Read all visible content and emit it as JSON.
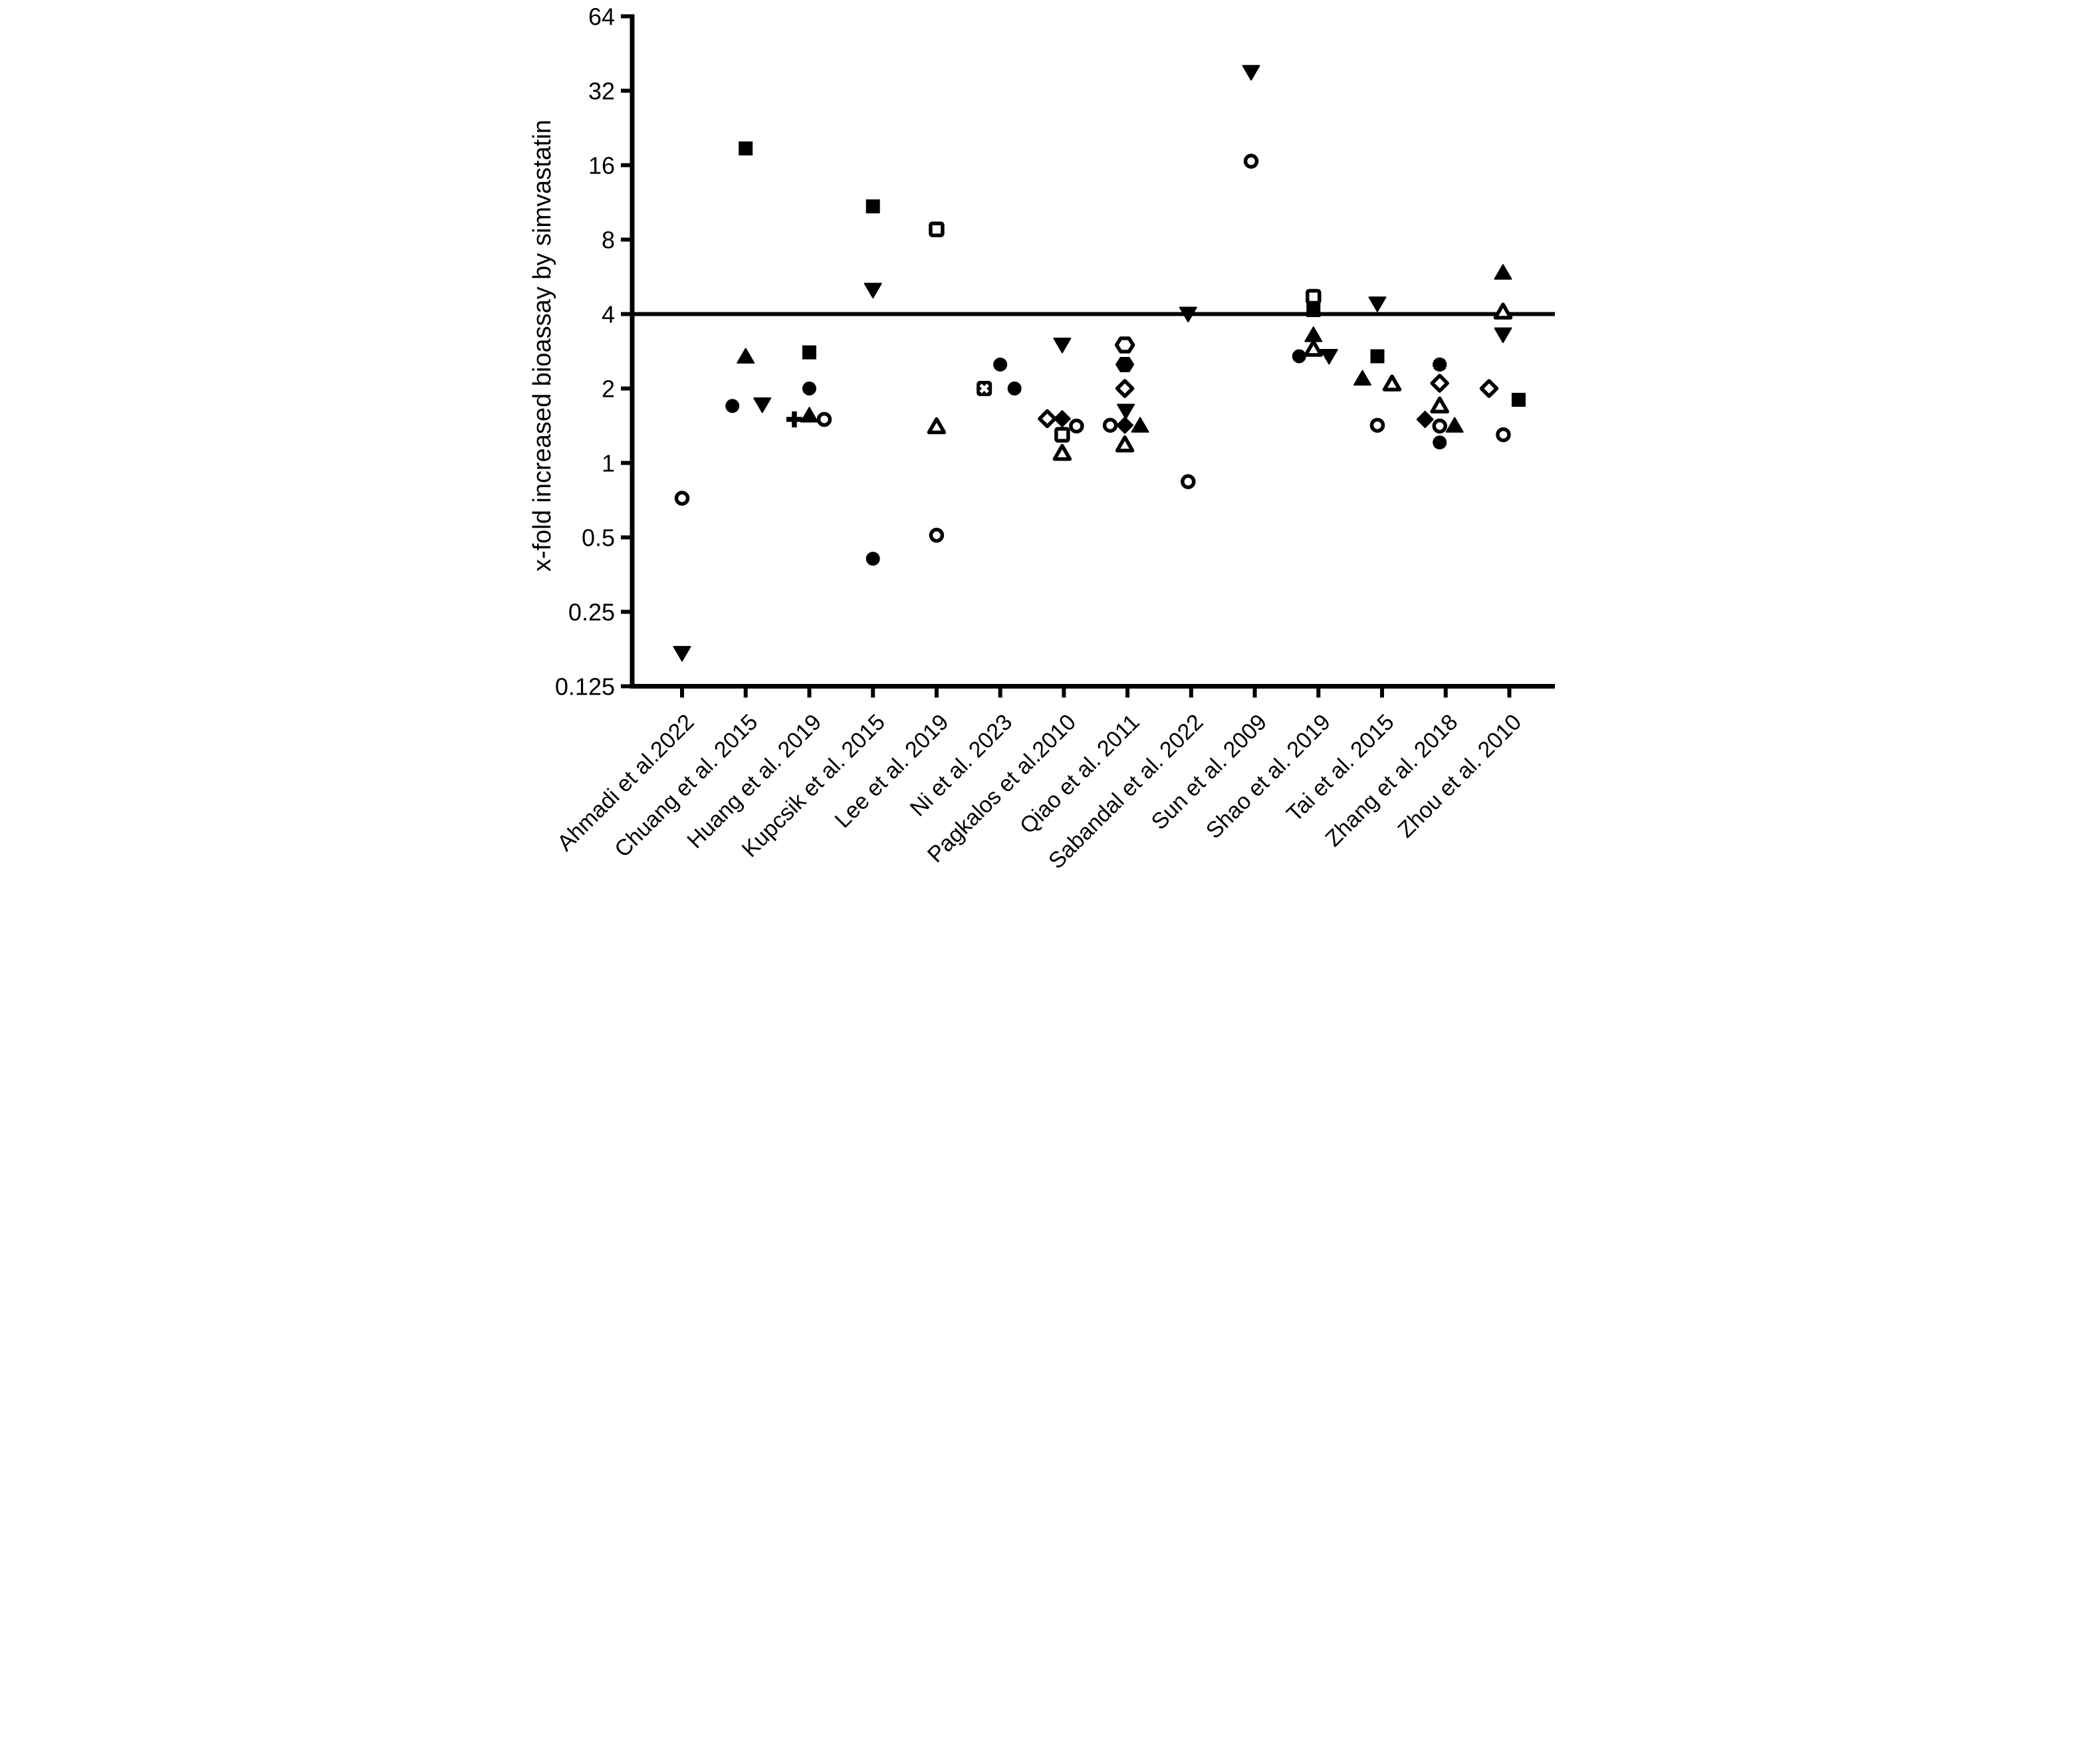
{
  "figure": {
    "background_color": "#ffffff",
    "foreground_color": "#000000"
  },
  "chart_data": {
    "type": "scatter",
    "title": "",
    "xlabel": "",
    "ylabel": "x-fold increased bioassay by simvastatin",
    "y_scale": "log2",
    "ylim": [
      0.125,
      64
    ],
    "y_ticks": [
      64,
      32,
      16,
      8,
      4,
      2,
      1,
      0.5,
      0.25,
      0.125
    ],
    "y_tick_labels": [
      "64",
      "32",
      "16",
      "8",
      "4",
      "2",
      "1",
      "0.5",
      "0.25",
      "0.125"
    ],
    "reference_line_y": 4,
    "grid": false,
    "legend": "none",
    "categories": [
      "Ahmadi et al.2022",
      "Chuang et al. 2015",
      "Huang et al. 2019",
      "Kupcsik et al. 2015",
      "Lee et al. 2019",
      "Ni et al. 2023",
      "Pagkalos et al.2010",
      "Qiao et al. 2011",
      "Sabandal et al. 2022",
      "Sun et al. 2009",
      "Shao et al. 2019",
      "Tai et al. 2015",
      "Zhang et al. 2018",
      "Zhou et al. 2010"
    ],
    "series": [
      {
        "study": "Ahmadi et al.2022",
        "points": [
          {
            "marker": "circle",
            "fill": "open",
            "value": 0.72,
            "dx": 0
          },
          {
            "marker": "triangle-down",
            "fill": "filled",
            "value": 0.17,
            "dx": 0
          }
        ]
      },
      {
        "study": "Chuang et al. 2015",
        "points": [
          {
            "marker": "square",
            "fill": "filled",
            "value": 18.7,
            "dx": 0
          },
          {
            "marker": "triangle-up",
            "fill": "filled",
            "value": 2.7,
            "dx": 0
          },
          {
            "marker": "circle",
            "fill": "filled",
            "value": 1.7,
            "dx": -40
          },
          {
            "marker": "triangle-down",
            "fill": "filled",
            "value": 1.72,
            "dx": 50
          }
        ]
      },
      {
        "study": "Huang et al. 2019",
        "points": [
          {
            "marker": "square",
            "fill": "filled",
            "value": 2.8,
            "dx": 0
          },
          {
            "marker": "circle",
            "fill": "filled",
            "value": 2.0,
            "dx": 0
          },
          {
            "marker": "plus",
            "fill": "filled",
            "value": 1.5,
            "dx": -45
          },
          {
            "marker": "triangle-up",
            "fill": "filled",
            "value": 1.56,
            "dx": 0
          },
          {
            "marker": "circle",
            "fill": "open",
            "value": 1.5,
            "dx": 45
          }
        ]
      },
      {
        "study": "Kupcsik et al. 2015",
        "points": [
          {
            "marker": "square",
            "fill": "filled",
            "value": 10.9,
            "dx": 0
          },
          {
            "marker": "triangle-down",
            "fill": "filled",
            "value": 5.0,
            "dx": 0
          },
          {
            "marker": "circle",
            "fill": "filled",
            "value": 0.41,
            "dx": 0
          }
        ]
      },
      {
        "study": "Lee et al. 2019",
        "points": [
          {
            "marker": "square",
            "fill": "open",
            "value": 8.8,
            "dx": 0
          },
          {
            "marker": "triangle-up",
            "fill": "open",
            "value": 1.41,
            "dx": 0
          },
          {
            "marker": "circle",
            "fill": "open",
            "value": 0.51,
            "dx": 0
          }
        ]
      },
      {
        "study": "Ni et al. 2023",
        "points": [
          {
            "marker": "circle",
            "fill": "filled",
            "value": 2.5,
            "dx": 0
          },
          {
            "marker": "square-x",
            "fill": "filled",
            "value": 2.0,
            "dx": -48
          },
          {
            "marker": "circle",
            "fill": "filled",
            "value": 2.0,
            "dx": 43
          }
        ]
      },
      {
        "study": "Pagkalos et al.2010",
        "points": [
          {
            "marker": "triangle-down",
            "fill": "filled",
            "value": 3.0,
            "dx": -5
          },
          {
            "marker": "diamond",
            "fill": "open",
            "value": 1.51,
            "dx": -50
          },
          {
            "marker": "diamond",
            "fill": "filled",
            "value": 1.51,
            "dx": -5
          },
          {
            "marker": "circle",
            "fill": "open",
            "value": 1.41,
            "dx": 38
          },
          {
            "marker": "square",
            "fill": "open",
            "value": 1.3,
            "dx": -5
          },
          {
            "marker": "triangle-up",
            "fill": "open",
            "value": 1.1,
            "dx": -5
          }
        ]
      },
      {
        "study": "Qiao et al. 2011",
        "points": [
          {
            "marker": "hexagon",
            "fill": "open",
            "value": 3.0,
            "dx": -8
          },
          {
            "marker": "hexagon",
            "fill": "filled",
            "value": 2.5,
            "dx": -8
          },
          {
            "marker": "diamond",
            "fill": "open",
            "value": 2.0,
            "dx": -8
          },
          {
            "marker": "triangle-down",
            "fill": "filled",
            "value": 1.62,
            "dx": -5
          },
          {
            "marker": "circle",
            "fill": "open",
            "value": 1.42,
            "dx": -52
          },
          {
            "marker": "diamond",
            "fill": "filled",
            "value": 1.42,
            "dx": -8
          },
          {
            "marker": "triangle-up",
            "fill": "filled",
            "value": 1.42,
            "dx": 38
          },
          {
            "marker": "triangle-up",
            "fill": "open",
            "value": 1.19,
            "dx": -8
          }
        ]
      },
      {
        "study": "Sabandal et al. 2022",
        "points": [
          {
            "marker": "triangle-down",
            "fill": "filled",
            "value": 4.0,
            "dx": -9
          },
          {
            "marker": "circle",
            "fill": "open",
            "value": 0.84,
            "dx": -9
          }
        ]
      },
      {
        "study": "Sun et al. 2009",
        "points": [
          {
            "marker": "triangle-down",
            "fill": "filled",
            "value": 38,
            "dx": -11
          },
          {
            "marker": "circle",
            "fill": "open",
            "value": 16.6,
            "dx": -11
          }
        ]
      },
      {
        "study": "Shao et al. 2019",
        "points": [
          {
            "marker": "square",
            "fill": "open",
            "value": 4.7,
            "dx": -15
          },
          {
            "marker": "square",
            "fill": "filled",
            "value": 4.15,
            "dx": -15
          },
          {
            "marker": "triangle-up",
            "fill": "filled",
            "value": 3.3,
            "dx": -15
          },
          {
            "marker": "triangle-up",
            "fill": "open",
            "value": 2.9,
            "dx": -15
          },
          {
            "marker": "circle",
            "fill": "filled",
            "value": 2.7,
            "dx": -58
          },
          {
            "marker": "triangle-down",
            "fill": "filled",
            "value": 2.7,
            "dx": 32
          }
        ]
      },
      {
        "study": "Tai et al. 2015",
        "points": [
          {
            "marker": "triangle-down",
            "fill": "filled",
            "value": 4.4,
            "dx": -14
          },
          {
            "marker": "square",
            "fill": "filled",
            "value": 2.7,
            "dx": -14
          },
          {
            "marker": "triangle-up",
            "fill": "filled",
            "value": 2.2,
            "dx": -59
          },
          {
            "marker": "triangle-up",
            "fill": "open",
            "value": 2.1,
            "dx": 30
          },
          {
            "marker": "circle",
            "fill": "open",
            "value": 1.42,
            "dx": -14
          }
        ]
      },
      {
        "study": "Zhang et al. 2018",
        "points": [
          {
            "marker": "asterisk",
            "fill": "filled",
            "value": 2.5,
            "dx": -18
          },
          {
            "marker": "diamond",
            "fill": "open",
            "value": 2.1,
            "dx": -18
          },
          {
            "marker": "triangle-up",
            "fill": "open",
            "value": 1.71,
            "dx": -18
          },
          {
            "marker": "diamond",
            "fill": "filled",
            "value": 1.5,
            "dx": -62
          },
          {
            "marker": "circle",
            "fill": "open",
            "value": 1.41,
            "dx": -18
          },
          {
            "marker": "triangle-up",
            "fill": "filled",
            "value": 1.42,
            "dx": 27
          },
          {
            "marker": "circle",
            "fill": "filled",
            "value": 1.21,
            "dx": -18
          }
        ]
      },
      {
        "study": "Zhou et al. 2010",
        "points": [
          {
            "marker": "triangle-up",
            "fill": "filled",
            "value": 5.9,
            "dx": -19
          },
          {
            "marker": "triangle-up",
            "fill": "open",
            "value": 4.1,
            "dx": -19
          },
          {
            "marker": "triangle-down",
            "fill": "filled",
            "value": 3.3,
            "dx": -19
          },
          {
            "marker": "diamond",
            "fill": "open",
            "value": 2.0,
            "dx": -61
          },
          {
            "marker": "square",
            "fill": "filled",
            "value": 1.8,
            "dx": 28
          },
          {
            "marker": "circle",
            "fill": "open",
            "value": 1.3,
            "dx": -18
          }
        ]
      }
    ]
  }
}
